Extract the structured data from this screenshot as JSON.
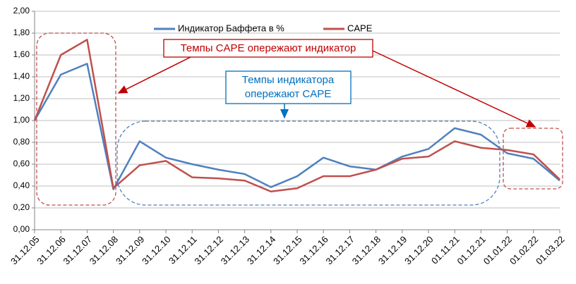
{
  "chart_data": {
    "type": "line",
    "categories": [
      "31.12.05",
      "31.12.06",
      "31.12.07",
      "31.12.08",
      "31.12.09",
      "31.12.10",
      "31.12.11",
      "31.12.12",
      "31.12.13",
      "31.12.14",
      "31.12.15",
      "31.12.16",
      "31.12.17",
      "31.12.18",
      "31.12.19",
      "31.12.20",
      "01.11.21",
      "01.12.21",
      "01.01.22",
      "01.02.22",
      "01.03.22"
    ],
    "series": [
      {
        "name": "Индикатор Баффета в %",
        "color": "#4f81bd",
        "values": [
          1.0,
          1.42,
          1.52,
          0.37,
          0.81,
          0.66,
          0.6,
          0.55,
          0.51,
          0.39,
          0.49,
          0.66,
          0.58,
          0.55,
          0.67,
          0.74,
          0.93,
          0.87,
          0.7,
          0.65,
          0.45
        ]
      },
      {
        "name": "CAPE",
        "color": "#c0504d",
        "values": [
          1.0,
          1.6,
          1.74,
          0.38,
          0.59,
          0.63,
          0.48,
          0.47,
          0.45,
          0.35,
          0.38,
          0.49,
          0.49,
          0.55,
          0.65,
          0.67,
          0.81,
          0.75,
          0.73,
          0.69,
          0.46
        ]
      }
    ],
    "ylim": [
      0,
      2
    ],
    "yticks": [
      {
        "value": 0,
        "label": "0,00"
      },
      {
        "value": 0.2,
        "label": "0,20"
      },
      {
        "value": 0.4,
        "label": "0,40"
      },
      {
        "value": 0.6,
        "label": "0,60"
      },
      {
        "value": 0.8,
        "label": "0,80"
      },
      {
        "value": 1,
        "label": "1,00"
      },
      {
        "value": 1.2,
        "label": "1,20"
      },
      {
        "value": 1.4,
        "label": "1,40"
      },
      {
        "value": 1.6,
        "label": "1,60"
      },
      {
        "value": 1.8,
        "label": "1,80"
      },
      {
        "value": 2,
        "label": "2,00"
      }
    ],
    "grid": true,
    "annotations": [
      {
        "text": "Темпы CAPE опережают индикатор"
      },
      {
        "lines": [
          "Темпы индикатора",
          "опережают CAPE"
        ]
      }
    ]
  }
}
